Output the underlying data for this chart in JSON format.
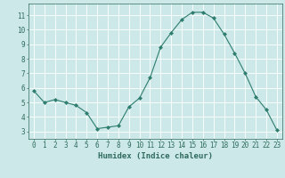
{
  "x": [
    0,
    1,
    2,
    3,
    4,
    5,
    6,
    7,
    8,
    9,
    10,
    11,
    12,
    13,
    14,
    15,
    16,
    17,
    18,
    19,
    20,
    21,
    22,
    23
  ],
  "y": [
    5.8,
    5.0,
    5.2,
    5.0,
    4.8,
    4.3,
    3.2,
    3.3,
    3.4,
    4.7,
    5.3,
    6.7,
    8.8,
    9.8,
    10.7,
    11.2,
    11.2,
    10.8,
    9.7,
    8.4,
    7.0,
    5.4,
    4.5,
    3.1
  ],
  "line_color": "#2e7d6e",
  "marker": "D",
  "markersize": 2,
  "bg_color": "#cde8e8",
  "grid_color": "#ffffff",
  "xlabel": "Humidex (Indice chaleur)",
  "xlim": [
    -0.5,
    23.5
  ],
  "ylim": [
    2.5,
    11.8
  ],
  "yticks": [
    3,
    4,
    5,
    6,
    7,
    8,
    9,
    10,
    11
  ],
  "xticks": [
    0,
    1,
    2,
    3,
    4,
    5,
    6,
    7,
    8,
    9,
    10,
    11,
    12,
    13,
    14,
    15,
    16,
    17,
    18,
    19,
    20,
    21,
    22,
    23
  ],
  "tick_fontsize": 5.5,
  "label_fontsize": 6.5,
  "tick_color": "#2e6b5e",
  "axis_color": "#2e6b5e"
}
